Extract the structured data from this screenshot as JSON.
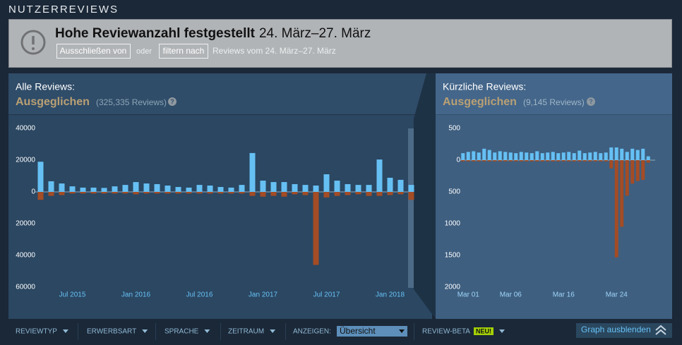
{
  "header": {
    "title": "NUTZERREVIEWS"
  },
  "notice": {
    "title": "Hohe Reviewanzahl festgestellt",
    "dates": "24. März–27. März",
    "exclude": "Ausschließen von",
    "or": "oder",
    "filter": "filtern nach",
    "range": "Reviews vom 24. März–27. März"
  },
  "panels": [
    {
      "label": "Alle Reviews:",
      "rating": "Ausgeglichen",
      "count": "(325,335 Reviews)",
      "help": "?"
    },
    {
      "label": "Kürzliche Reviews:",
      "rating": "Ausgeglichen",
      "count": "(9,145 Reviews)",
      "help": "?"
    }
  ],
  "chart_data": [
    {
      "type": "bar",
      "categories": [
        null,
        null,
        null,
        "Jul 2015",
        null,
        null,
        null,
        null,
        null,
        "Jan 2016",
        null,
        null,
        null,
        null,
        null,
        "Jul 2016",
        null,
        null,
        null,
        null,
        null,
        "Jan 2017",
        null,
        null,
        null,
        null,
        null,
        "Jul 2017",
        null,
        null,
        null,
        null,
        null,
        "Jan 2018",
        null,
        null
      ],
      "series": [
        {
          "color": "#66c0f4",
          "values": [
            19000,
            6700,
            5300,
            3500,
            2700,
            2700,
            2500,
            3500,
            4400,
            6200,
            5300,
            4900,
            4000,
            3100,
            2700,
            4400,
            4000,
            3100,
            2700,
            4400,
            24500,
            7100,
            6200,
            6200,
            4900,
            4400,
            4000,
            11100,
            7100,
            4900,
            4400,
            4400,
            20400,
            8900,
            7600,
            4400
          ]
        },
        {
          "color": "#a34c25",
          "values": [
            -5000,
            -2500,
            -2000,
            -1000,
            -1000,
            -1000,
            -1000,
            -1000,
            -1000,
            -1500,
            -1000,
            -1000,
            -1000,
            -1000,
            -1000,
            -1000,
            -1000,
            -1000,
            -1000,
            -1000,
            -2500,
            -3000,
            -2500,
            -3000,
            -1500,
            -2000,
            -46000,
            -3500,
            -2500,
            -2000,
            -1500,
            -2500,
            -2500,
            -2000,
            -1500,
            -5000
          ]
        }
      ],
      "ylim": [
        -60000,
        40000
      ],
      "yticks": [
        40000,
        20000,
        0,
        {
          "value": -20000,
          "label": "20000"
        },
        {
          "value": -40000,
          "label": "40000"
        },
        {
          "value": -60000,
          "label": "60000"
        }
      ]
    },
    {
      "type": "bar",
      "categories": [
        null,
        "Mar 01",
        null,
        null,
        null,
        null,
        null,
        null,
        null,
        "Mar 06",
        null,
        null,
        null,
        null,
        null,
        null,
        null,
        null,
        null,
        "Mar 16",
        null,
        null,
        null,
        null,
        null,
        null,
        null,
        null,
        null,
        "Mar 24",
        null,
        null,
        null,
        null,
        null,
        null
      ],
      "series": [
        {
          "color": "#66c0f4",
          "values": [
            110,
            130,
            140,
            120,
            180,
            160,
            120,
            140,
            130,
            120,
            110,
            130,
            120,
            110,
            140,
            110,
            120,
            130,
            110,
            120,
            130,
            110,
            150,
            110,
            120,
            130,
            110,
            120,
            200,
            200,
            180,
            130,
            180,
            160,
            180,
            60
          ]
        },
        {
          "color": "#a34c25",
          "values": [
            -20,
            -20,
            -20,
            -20,
            -20,
            -20,
            -20,
            -20,
            -20,
            -20,
            -20,
            -20,
            -20,
            -20,
            -20,
            -20,
            -20,
            -20,
            -20,
            -20,
            -20,
            -20,
            -20,
            -20,
            -20,
            -20,
            -20,
            -20,
            -130,
            -1530,
            -1050,
            -560,
            -370,
            -330,
            -310,
            -40
          ]
        }
      ],
      "ylim": [
        -2000,
        500
      ],
      "yticks": [
        500,
        0,
        {
          "value": -500,
          "label": "500"
        },
        {
          "value": -1000,
          "label": "1000"
        },
        {
          "value": -1500,
          "label": "1500"
        },
        {
          "value": -2000,
          "label": "2000"
        }
      ]
    }
  ],
  "filters": {
    "items": [
      "REVIEWTYP",
      "ERWERBSART",
      "SPRACHE",
      "ZEITRAUM"
    ],
    "display_label": "ANZEIGEN:",
    "display_value": "Übersicht",
    "beta": "REVIEW-BETA",
    "beta_badge": "NEU!",
    "toggle": "Graph ausblenden"
  }
}
